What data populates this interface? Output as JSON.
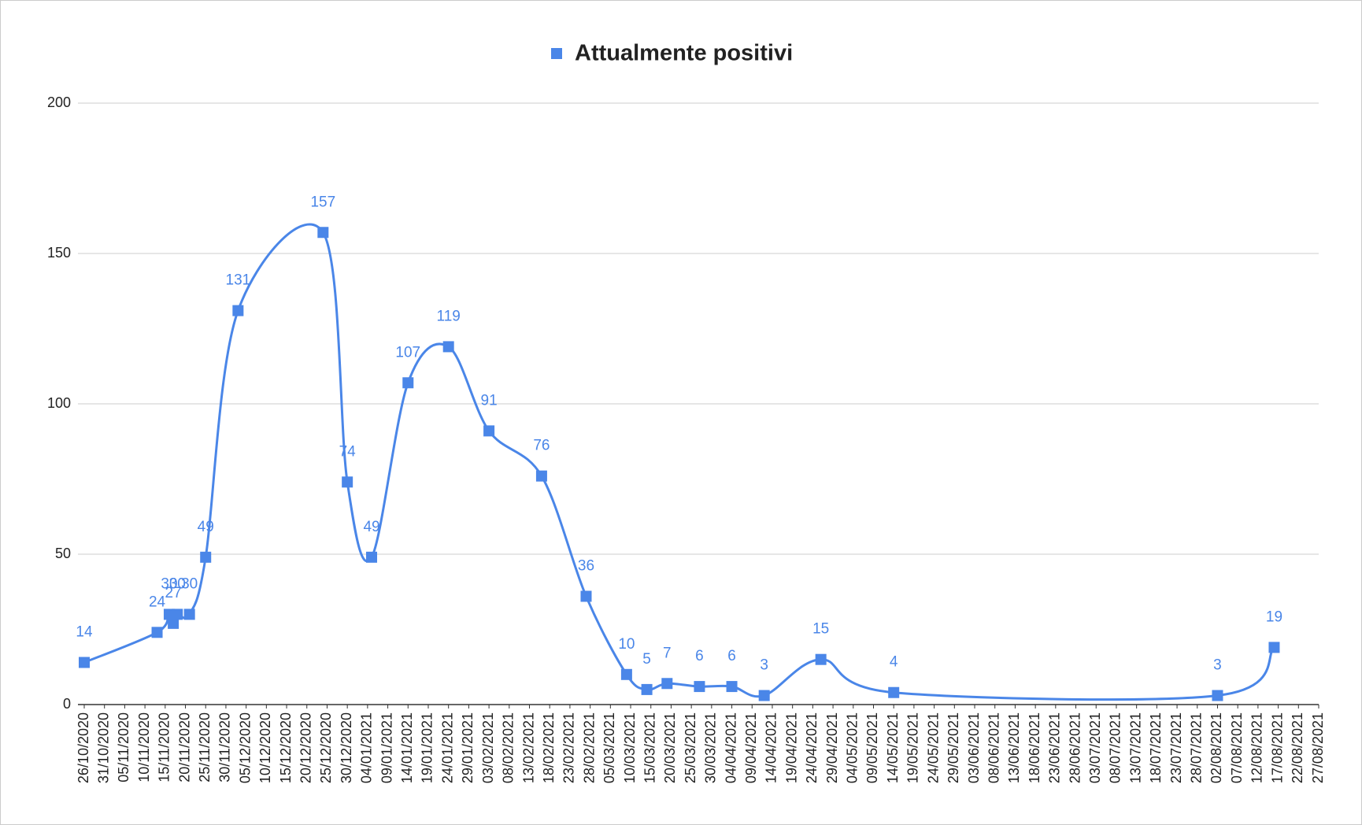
{
  "chart_data": {
    "type": "line",
    "legend_title": "Attualmente positivi",
    "legend": "top",
    "x": [
      "26/10/2020",
      "13/11/2020",
      "16/11/2020",
      "17/11/2020",
      "18/11/2020",
      "21/11/2020",
      "25/11/2020",
      "03/12/2020",
      "24/12/2020",
      "30/12/2020",
      "05/01/2021",
      "14/01/2021",
      "24/01/2021",
      "03/02/2021",
      "16/02/2021",
      "27/02/2021",
      "09/03/2021",
      "14/03/2021",
      "19/03/2021",
      "27/03/2021",
      "04/04/2021",
      "12/04/2021",
      "26/04/2021",
      "14/05/2021",
      "02/08/2021",
      "16/08/2021"
    ],
    "series": [
      {
        "name": "Attualmente positivi",
        "color": "#4a86e8",
        "values": [
          14,
          24,
          30,
          27,
          30,
          30,
          49,
          131,
          157,
          74,
          49,
          107,
          119,
          91,
          76,
          36,
          10,
          5,
          7,
          6,
          6,
          3,
          15,
          4,
          3,
          19
        ]
      }
    ],
    "ylim": [
      0,
      200
    ],
    "yticks": [
      0,
      50,
      100,
      150,
      200
    ],
    "grid": true,
    "xlim": [
      "26/10/2020",
      "27/08/2021"
    ],
    "xticks": [
      "26/10/2020",
      "31/10/2020",
      "05/11/2020",
      "10/11/2020",
      "15/11/2020",
      "20/11/2020",
      "25/11/2020",
      "30/11/2020",
      "05/12/2020",
      "10/12/2020",
      "15/12/2020",
      "20/12/2020",
      "25/12/2020",
      "30/12/2020",
      "04/01/2021",
      "09/01/2021",
      "14/01/2021",
      "19/01/2021",
      "24/01/2021",
      "29/01/2021",
      "03/02/2021",
      "08/02/2021",
      "13/02/2021",
      "18/02/2021",
      "23/02/2021",
      "28/02/2021",
      "05/03/2021",
      "10/03/2021",
      "15/03/2021",
      "20/03/2021",
      "25/03/2021",
      "30/03/2021",
      "04/04/2021",
      "09/04/2021",
      "14/04/2021",
      "19/04/2021",
      "24/04/2021",
      "29/04/2021",
      "04/05/2021",
      "09/05/2021",
      "14/05/2021",
      "19/05/2021",
      "24/05/2021",
      "29/05/2021",
      "03/06/2021",
      "08/06/2021",
      "13/06/2021",
      "18/06/2021",
      "23/06/2021",
      "28/06/2021",
      "03/07/2021",
      "08/07/2021",
      "13/07/2021",
      "18/07/2021",
      "23/07/2021",
      "28/07/2021",
      "02/08/2021",
      "07/08/2021",
      "12/08/2021",
      "17/08/2021",
      "22/08/2021",
      "27/08/2021"
    ]
  }
}
